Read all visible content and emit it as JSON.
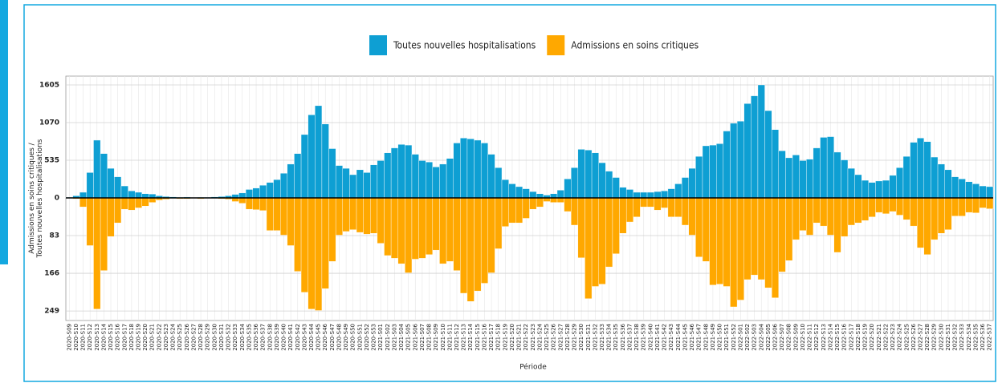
{
  "chart_data": {
    "type": "diverging_bar",
    "ylabel": "Admissions en soins critiques / Toutes nouvelles hospitalisations",
    "xlabel": "Période",
    "categories": [
      "2020-S09",
      "2020-S10",
      "2020-S11",
      "2020-S12",
      "2020-S13",
      "2020-S14",
      "2020-S15",
      "2020-S16",
      "2020-S17",
      "2020-S18",
      "2020-S19",
      "2020-S20",
      "2020-S21",
      "2020-S22",
      "2020-S23",
      "2020-S24",
      "2020-S25",
      "2020-S26",
      "2020-S27",
      "2020-S28",
      "2020-S29",
      "2020-S30",
      "2020-S31",
      "2020-S32",
      "2020-S33",
      "2020-S34",
      "2020-S35",
      "2020-S36",
      "2020-S37",
      "2020-S38",
      "2020-S39",
      "2020-S40",
      "2020-S41",
      "2020-S42",
      "2020-S43",
      "2020-S44",
      "2020-S45",
      "2020-S46",
      "2020-S47",
      "2020-S48",
      "2020-S49",
      "2020-S50",
      "2020-S51",
      "2020-S52",
      "2020-S53",
      "2021-S01",
      "2021-S02",
      "2021-S03",
      "2021-S04",
      "2021-S05",
      "2021-S06",
      "2021-S07",
      "2021-S08",
      "2021-S09",
      "2021-S10",
      "2021-S11",
      "2021-S12",
      "2021-S13",
      "2021-S14",
      "2021-S15",
      "2021-S16",
      "2021-S17",
      "2021-S18",
      "2021-S19",
      "2021-S20",
      "2021-S21",
      "2021-S22",
      "2021-S23",
      "2021-S24",
      "2021-S25",
      "2021-S26",
      "2021-S27",
      "2021-S28",
      "2021-S29",
      "2021-S30",
      "2021-S31",
      "2021-S32",
      "2021-S33",
      "2021-S34",
      "2021-S35",
      "2021-S36",
      "2021-S37",
      "2021-S38",
      "2021-S39",
      "2021-S40",
      "2021-S41",
      "2021-S42",
      "2021-S43",
      "2021-S44",
      "2021-S45",
      "2021-S46",
      "2021-S47",
      "2021-S48",
      "2021-S49",
      "2021-S50",
      "2021-S51",
      "2021-S52",
      "2022-S01",
      "2022-S02",
      "2022-S03",
      "2022-S04",
      "2022-S05",
      "2022-S06",
      "2022-S07",
      "2022-S08",
      "2022-S09",
      "2022-S10",
      "2022-S11",
      "2022-S12",
      "2022-S13",
      "2022-S14",
      "2022-S15",
      "2022-S16",
      "2022-S17",
      "2022-S18",
      "2022-S19",
      "2022-S20",
      "2022-S21",
      "2022-S22",
      "2022-S23",
      "2022-S24",
      "2022-S25",
      "2022-S26",
      "2022-S27",
      "2022-S28",
      "2022-S29",
      "2022-S30",
      "2022-S31",
      "2022-S32",
      "2022-S33",
      "2022-S34",
      "2022-S35",
      "2022-S36",
      "2022-S37"
    ],
    "series": [
      {
        "name": "Toutes nouvelles hospitalisations",
        "color": "#0e9fd3",
        "axis": "y",
        "values": [
          10,
          30,
          80,
          360,
          820,
          630,
          420,
          300,
          170,
          100,
          80,
          60,
          55,
          30,
          20,
          15,
          10,
          12,
          8,
          10,
          10,
          15,
          20,
          30,
          50,
          70,
          120,
          140,
          180,
          220,
          260,
          350,
          480,
          630,
          900,
          1180,
          1310,
          1050,
          700,
          460,
          420,
          330,
          400,
          360,
          470,
          530,
          640,
          710,
          760,
          750,
          620,
          530,
          510,
          440,
          480,
          560,
          780,
          850,
          840,
          820,
          780,
          620,
          430,
          260,
          200,
          160,
          130,
          90,
          60,
          40,
          60,
          110,
          270,
          430,
          690,
          680,
          640,
          500,
          380,
          290,
          150,
          120,
          80,
          80,
          80,
          90,
          100,
          130,
          200,
          290,
          420,
          590,
          740,
          750,
          770,
          950,
          1060,
          1090,
          1340,
          1450,
          1605,
          1240,
          970,
          670,
          570,
          610,
          530,
          550,
          710,
          860,
          870,
          650,
          540,
          420,
          330,
          250,
          220,
          240,
          250,
          320,
          430,
          590,
          790,
          850,
          800,
          580,
          480,
          400,
          300,
          270,
          230,
          200,
          170,
          160
        ]
      },
      {
        "name": "Admissions en soins critiques",
        "color": "#ffa800",
        "axis": "y2",
        "values": [
          0,
          2,
          20,
          105,
          245,
          160,
          85,
          55,
          25,
          27,
          22,
          18,
          10,
          5,
          3,
          1,
          2,
          2,
          1,
          2,
          1,
          1,
          2,
          3,
          8,
          12,
          25,
          26,
          28,
          72,
          72,
          82,
          105,
          162,
          208,
          245,
          248,
          200,
          140,
          82,
          74,
          70,
          76,
          80,
          78,
          100,
          127,
          133,
          145,
          165,
          135,
          133,
          125,
          115,
          145,
          140,
          160,
          210,
          228,
          205,
          188,
          165,
          112,
          63,
          55,
          55,
          45,
          25,
          20,
          8,
          10,
          10,
          30,
          60,
          132,
          222,
          195,
          190,
          152,
          123,
          78,
          53,
          42,
          20,
          20,
          27,
          22,
          42,
          42,
          60,
          82,
          130,
          140,
          192,
          190,
          195,
          240,
          225,
          180,
          170,
          180,
          198,
          220,
          163,
          138,
          92,
          72,
          82,
          55,
          62,
          82,
          120,
          85,
          60,
          55,
          50,
          42,
          32,
          35,
          30,
          38,
          48,
          62,
          110,
          125,
          92,
          78,
          70,
          40,
          40,
          32,
          33,
          22,
          24
        ]
      }
    ],
    "ylim": [
      0,
      1730
    ],
    "yticks": [
      0,
      535,
      1070,
      1605
    ],
    "y2lim": [
      0,
      270
    ],
    "y2ticks": [
      83,
      166,
      249
    ],
    "y2_inverted": true,
    "grid": true,
    "legend": "top"
  }
}
